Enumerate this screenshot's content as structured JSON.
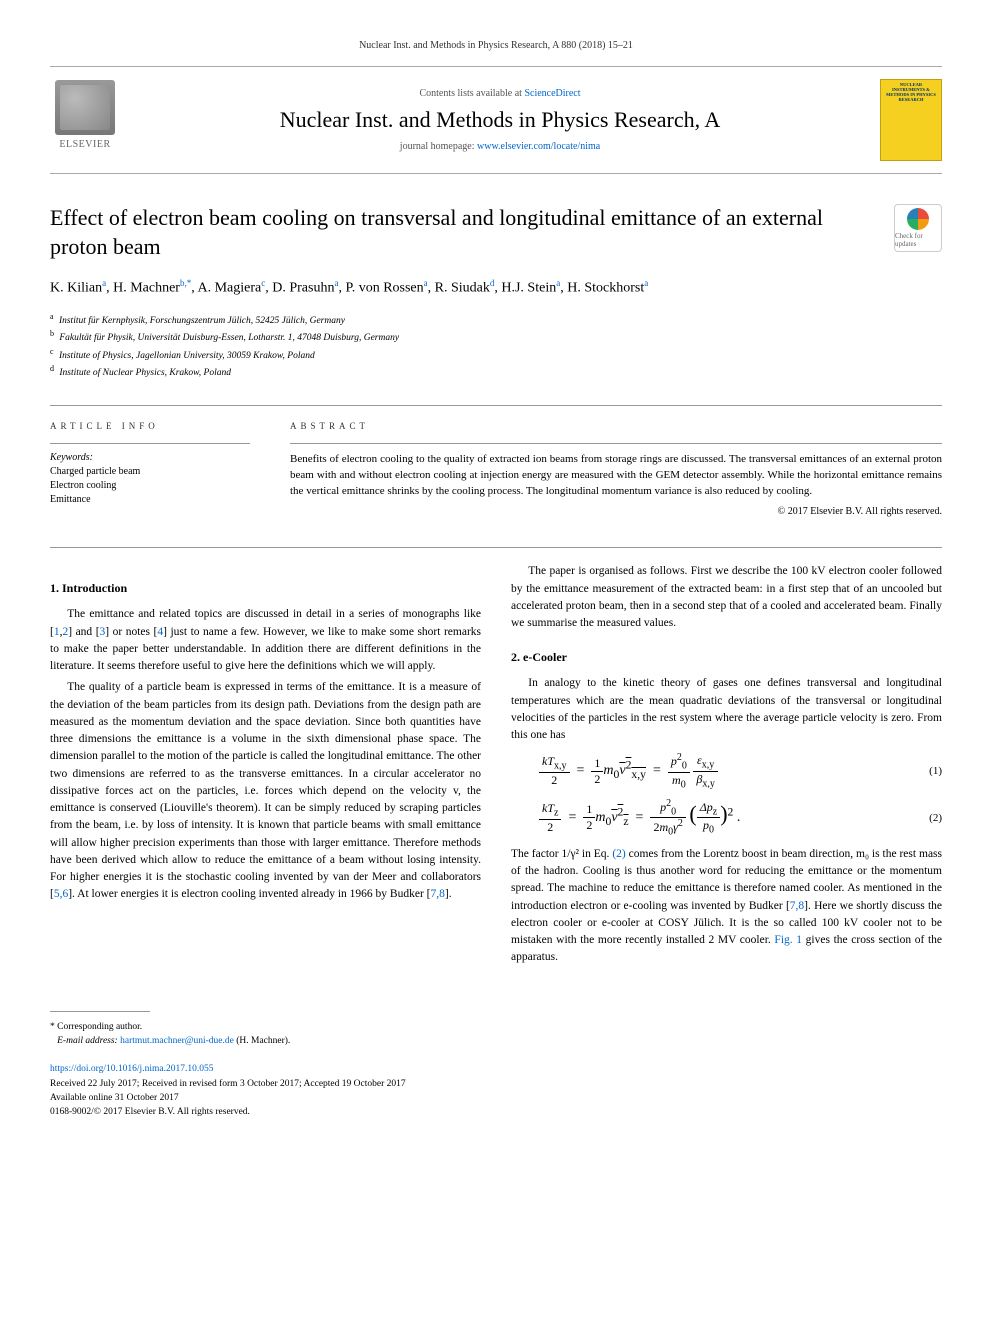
{
  "header": {
    "citation": "Nuclear Inst. and Methods in Physics Research, A 880 (2018) 15–21",
    "contents_prefix": "Contents lists available at ",
    "contents_link": "ScienceDirect",
    "journal_name": "Nuclear Inst. and Methods in Physics Research, A",
    "homepage_prefix": "journal homepage: ",
    "homepage_url": "www.elsevier.com/locate/nima",
    "publisher": "ELSEVIER",
    "cover_text": "NUCLEAR INSTRUMENTS & METHODS IN PHYSICS RESEARCH"
  },
  "title": "Effect of electron beam cooling on transversal and longitudinal emittance of an external proton beam",
  "check_updates": "Check for updates",
  "authors_html": "K. Kilian<sup>a</sup>, H. Machner<sup>b,*</sup>, A. Magiera<sup>c</sup>, D. Prasuhn<sup>a</sup>, P. von Rossen<sup>a</sup>, R. Siudak<sup>d</sup>, H.J. Stein<sup>a</sup>, H. Stockhorst<sup>a</sup>",
  "affiliations": [
    {
      "sup": "a",
      "text": "Institut für Kernphysik, Forschungszentrum Jülich, 52425 Jülich, Germany"
    },
    {
      "sup": "b",
      "text": "Fakultät für Physik, Universität Duisburg-Essen, Lotharstr. 1, 47048 Duisburg, Germany"
    },
    {
      "sup": "c",
      "text": "Institute of Physics, Jagellonian University, 30059 Krakow, Poland"
    },
    {
      "sup": "d",
      "text": "Institute of Nuclear Physics, Krakow, Poland"
    }
  ],
  "info": {
    "label": "ARTICLE INFO",
    "keywords_label": "Keywords:",
    "keywords": [
      "Charged particle beam",
      "Electron cooling",
      "Emittance"
    ]
  },
  "abstract": {
    "label": "ABSTRACT",
    "text": "Benefits of electron cooling to the quality of extracted ion beams from storage rings are discussed. The transversal emittances of an external proton beam with and without electron cooling at injection energy are measured with the GEM detector assembly. While the horizontal emittance remains the vertical emittance shrinks by the cooling process. The longitudinal momentum variance is also reduced by cooling.",
    "copyright": "© 2017 Elsevier B.V. All rights reserved."
  },
  "sections": {
    "intro_heading": "1. Introduction",
    "intro_p1_pre": "The emittance and related topics are discussed in detail in a series of monographs like [",
    "intro_p1_r1": "1",
    "intro_p1_m1": ",",
    "intro_p1_r2": "2",
    "intro_p1_m2": "] and [",
    "intro_p1_r3": "3",
    "intro_p1_m3": "] or notes [",
    "intro_p1_r4": "4",
    "intro_p1_post": "] just to name a few. However, we like to make some short remarks to make the paper better understandable. In addition there are different definitions in the literature. It seems therefore useful to give here the definitions which we will apply.",
    "intro_p2_a": "The quality of a particle beam is expressed in terms of the emittance. It is a measure of the deviation of the beam particles from its design path. Deviations from the design path are measured as the momentum deviation and the space deviation. Since both quantities have three dimensions the emittance is a volume in the sixth dimensional phase space. The dimension parallel to the motion of the particle is called the longitudinal emittance. The other two dimensions are referred to as the transverse emittances. In a circular accelerator no dissipative forces act on the particles, i.e. forces which depend on the velocity v, the emittance is conserved (Liouville's theorem). It can be simply reduced by scraping particles from the beam, i.e. by loss of intensity. It is known that particle beams with small emittance will allow higher precision experiments than those with larger emittance. Therefore methods have been derived which allow to reduce the emittance of a beam without losing intensity. For higher energies it is the stochastic cooling invented by van der Meer and collaborators [",
    "intro_p2_r56": "5,6",
    "intro_p2_b": "]. At lower energies it is electron cooling invented already in 1966 by Budker [",
    "intro_p2_r78": "7,8",
    "intro_p2_c": "].",
    "intro_p3": "The paper is organised as follows. First we describe the 100 kV electron cooler followed by the emittance measurement of the extracted beam: in a first step that of an uncooled but accelerated proton beam, then in a second step that of a cooled and accelerated beam. Finally we summarise the measured values.",
    "ecooler_heading": "2. e-Cooler",
    "ecooler_p1": "In analogy to the kinetic theory of gases one defines transversal and longitudinal temperatures which are the mean quadratic deviations of the transversal or longitudinal velocities of the particles in the rest system where the average particle velocity is zero. From this one has",
    "eq1_num": "(1)",
    "eq2_num": "(2)",
    "ecooler_p2_a": "The factor 1/γ² in Eq. ",
    "ecooler_p2_eqref": "(2)",
    "ecooler_p2_b": " comes from the Lorentz boost in beam direction, m₀ is the rest mass of the hadron. Cooling is thus another word for reducing the emittance or the momentum spread. The machine to reduce the emittance is therefore named cooler. As mentioned in the introduction electron or e-cooling was invented by Budker [",
    "ecooler_p2_r78": "7,8",
    "ecooler_p2_c": "]. Here we shortly discuss the electron cooler or e-cooler at COSY Jülich. It is the so called 100 kV cooler not to be mistaken with the more recently installed 2 MV cooler. ",
    "ecooler_p2_figref": "Fig. 1",
    "ecooler_p2_d": " gives the cross section of the apparatus."
  },
  "footer": {
    "corresponding": "* Corresponding author.",
    "email_label": "E-mail address: ",
    "email": "hartmut.machner@uni-due.de",
    "email_name": " (H. Machner).",
    "doi": "https://doi.org/10.1016/j.nima.2017.10.055",
    "received": "Received 22 July 2017; Received in revised form 3 October 2017; Accepted 19 October 2017",
    "available": "Available online 31 October 2017",
    "issn": "0168-9002/© 2017 Elsevier B.V. All rights reserved."
  },
  "colors": {
    "link": "#0066cc",
    "cover_bg": "#f5d020",
    "text": "#000000"
  }
}
